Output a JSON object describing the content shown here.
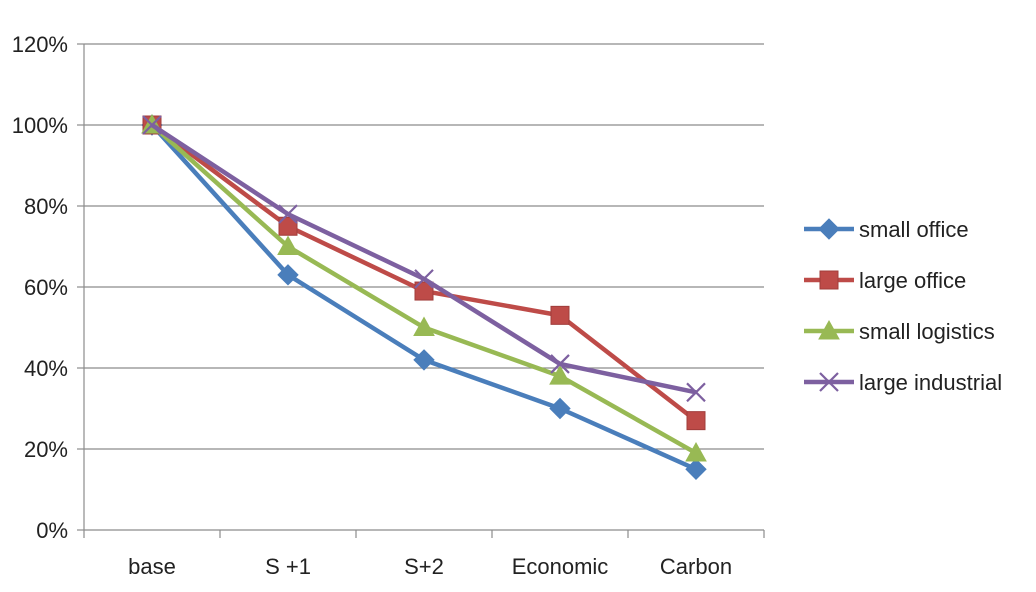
{
  "chart_data": {
    "type": "line",
    "title": "",
    "xlabel": "",
    "ylabel": "",
    "categories": [
      "base",
      "S +1",
      "S+2",
      "Economic",
      "Carbon"
    ],
    "ylim": [
      0,
      120
    ],
    "y_ticks": [
      "0%",
      "20%",
      "40%",
      "60%",
      "80%",
      "100%",
      "120%"
    ],
    "y_tick_values": [
      0,
      20,
      40,
      60,
      80,
      100,
      120
    ],
    "grid": "horizontal",
    "legend_position": "right",
    "series": [
      {
        "name": "small office",
        "values": [
          100,
          63,
          42,
          30,
          15
        ],
        "color": "#4a7ebb",
        "marker": "diamond"
      },
      {
        "name": "large office",
        "values": [
          100,
          75,
          59,
          53,
          27
        ],
        "color": "#be4b48",
        "marker": "square"
      },
      {
        "name": "small logistics",
        "values": [
          100,
          70,
          50,
          38,
          19
        ],
        "color": "#98b954",
        "marker": "triangle"
      },
      {
        "name": "large industrial",
        "values": [
          100,
          78,
          62,
          41,
          34
        ],
        "color": "#7d60a0",
        "marker": "x"
      }
    ]
  }
}
